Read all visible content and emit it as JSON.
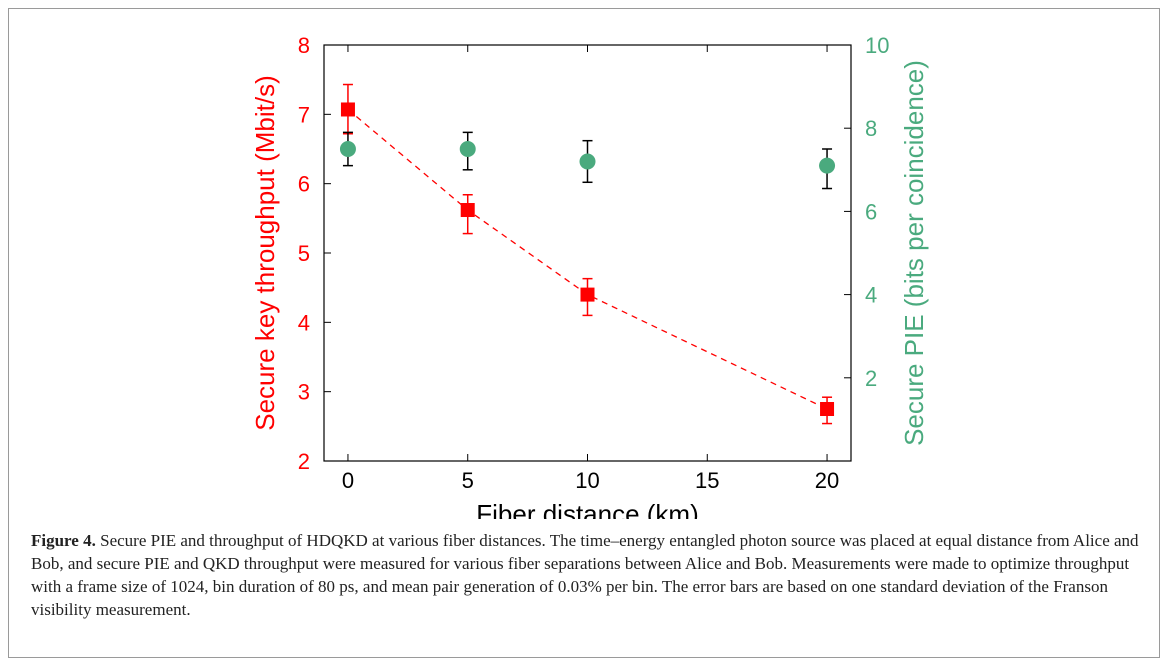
{
  "figure": {
    "caption_label": "Figure 4.",
    "caption_text": " Secure PIE and throughput of HDQKD at various fiber distances. The time–energy entangled photon source was placed at equal distance from Alice and Bob, and secure PIE and QKD throughput were measured for various fiber separations between Alice and Bob. Measurements were made to optimize throughput with a frame size of 1024, bin duration of 80 ps, and mean pair generation of 0.03% per bin. The error bars are based on one standard deviation of the Franson visibility measurement."
  },
  "chart_data": {
    "type": "scatter",
    "title": "",
    "xlabel": "Fiber distance (km)",
    "ylabel_left": "Secure key throughput (Mbit/s)",
    "ylabel_right": "Secure PIE (bits per coincidence)",
    "xlim": [
      -1,
      21
    ],
    "ylim_left": [
      2,
      8
    ],
    "ylim_right": [
      0,
      10
    ],
    "xticks": [
      0,
      5,
      10,
      15,
      20
    ],
    "yticks_left": [
      2,
      3,
      4,
      5,
      6,
      7,
      8
    ],
    "yticks_right": [
      2,
      4,
      6,
      8,
      10
    ],
    "grid": false,
    "series": [
      {
        "axis": "left",
        "marker": "square",
        "color": "#ff0000",
        "errorbar_color": "#ff0000",
        "fit_line": "dashed",
        "x": [
          0,
          5,
          10,
          20
        ],
        "y": [
          7.07,
          5.62,
          4.4,
          2.75
        ],
        "err_low": [
          6.72,
          5.28,
          4.1,
          2.54
        ],
        "err_high": [
          7.43,
          5.84,
          4.63,
          2.92
        ]
      },
      {
        "axis": "right",
        "marker": "circle",
        "color": "#4aaa7e",
        "errorbar_color": "#000000",
        "x": [
          0,
          5,
          10,
          20
        ],
        "y": [
          7.5,
          7.5,
          7.2,
          7.1
        ],
        "err_low": [
          7.1,
          7.0,
          6.7,
          6.55
        ],
        "err_high": [
          7.9,
          7.9,
          7.7,
          7.5
        ]
      }
    ],
    "colors": {
      "left_axis": "#ff0000",
      "right_axis": "#4aaa7e",
      "frame": "#000000"
    }
  }
}
